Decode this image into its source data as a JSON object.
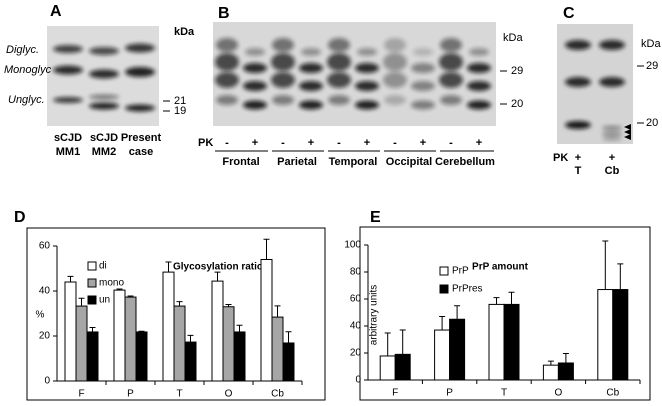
{
  "panel_a": {
    "label": "A",
    "unit": "kDa",
    "band_labels": [
      "Diglyc.",
      "Monoglyc",
      "Unglyc."
    ],
    "markers": [
      "21",
      "19"
    ],
    "lanes": [
      [
        "sCJD",
        "MM1"
      ],
      [
        "sCJD",
        "MM2"
      ],
      [
        "Present",
        "case"
      ]
    ]
  },
  "panel_b": {
    "label": "B",
    "unit": "kDa",
    "markers": [
      "29",
      "20"
    ],
    "treatment": "PK",
    "lanes": [
      "-",
      "+",
      "-",
      "+",
      "-",
      "+",
      "-",
      "+",
      "-",
      "+"
    ],
    "regions": [
      "Frontal",
      "Parietal",
      "Temporal",
      "Occipital",
      "Cerebellum"
    ]
  },
  "panel_c": {
    "label": "C",
    "unit": "kDa",
    "markers": [
      "29",
      "20"
    ],
    "treatment": "PK",
    "lanes": [
      "+",
      "+"
    ],
    "tissues": [
      "T",
      "Cb"
    ]
  },
  "chart_data": [
    {
      "type": "bar",
      "panel": "D",
      "title": "Glycosylation ratio",
      "ylabel": "%",
      "categories": [
        "F",
        "P",
        "T",
        "O",
        "Cb"
      ],
      "ylim": [
        0,
        60
      ],
      "yticks": [
        0,
        20,
        40,
        60
      ],
      "series": [
        {
          "name": "di",
          "color": "#ffffff",
          "values": [
            44,
            40.4,
            48.4,
            44.4,
            54
          ],
          "errors": [
            2.5,
            0.5,
            4.5,
            4,
            9
          ]
        },
        {
          "name": "mono",
          "color": "#a6a6a6",
          "values": [
            33.3,
            37.3,
            33.3,
            33,
            28.4
          ],
          "errors": [
            3.5,
            0.5,
            2,
            1,
            5
          ]
        },
        {
          "name": "un",
          "color": "#000000",
          "values": [
            21.8,
            21.8,
            17.3,
            21.8,
            16.9
          ],
          "errors": [
            2,
            0.3,
            3,
            3,
            5
          ]
        }
      ]
    },
    {
      "type": "bar",
      "panel": "E",
      "title": "PrP amount",
      "ylabel": "arbitrary units",
      "categories": [
        "F",
        "P",
        "T",
        "O",
        "Cb"
      ],
      "ylim": [
        0,
        100
      ],
      "yticks": [
        0,
        20,
        40,
        60,
        80,
        100
      ],
      "series": [
        {
          "name": "PrP",
          "color": "#ffffff",
          "values": [
            17.8,
            37,
            56,
            11,
            67
          ],
          "errors": [
            17,
            10,
            5,
            3,
            36
          ]
        },
        {
          "name": "PrPres",
          "color": "#000000",
          "values": [
            19,
            45,
            56,
            12.6,
            67
          ],
          "errors": [
            18,
            10,
            9,
            7,
            19
          ]
        }
      ]
    }
  ]
}
